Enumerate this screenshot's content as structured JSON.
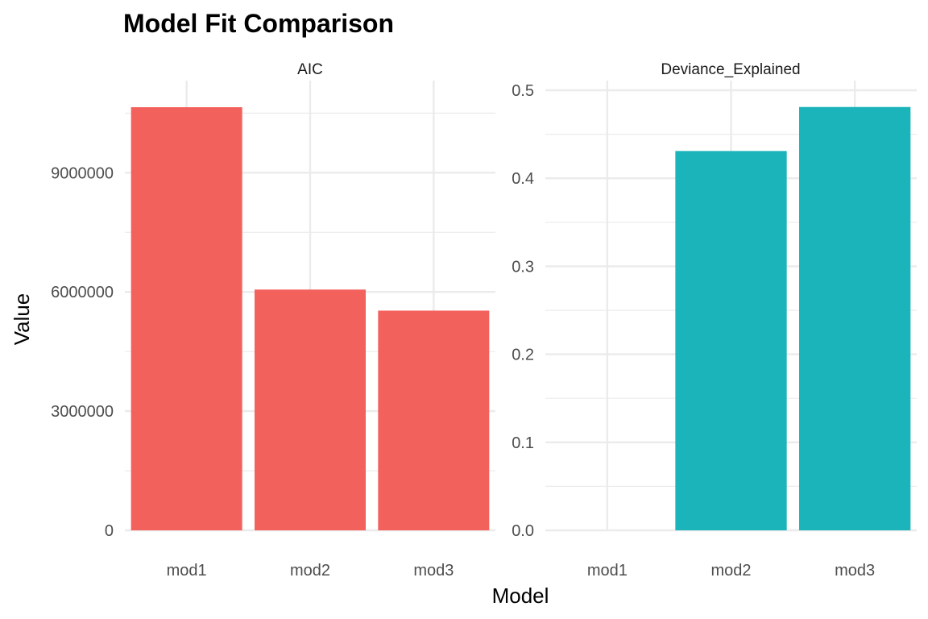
{
  "chart_data": {
    "type": "bar",
    "title": "Model Fit Comparison",
    "xlabel": "Model",
    "ylabel": "Value",
    "facets": [
      {
        "strip_label": "AIC",
        "categories": [
          "mod1",
          "mod2",
          "mod3"
        ],
        "values": [
          10650000,
          6060000,
          5530000
        ],
        "ylim": [
          0,
          10650000
        ],
        "yticks": [
          0,
          3000000,
          6000000,
          9000000
        ],
        "ytick_labels": [
          "0",
          "3000000",
          "6000000",
          "9000000"
        ],
        "color": "#F3615D"
      },
      {
        "strip_label": "Deviance_Explained",
        "categories": [
          "mod1",
          "mod2",
          "mod3"
        ],
        "values": [
          0.0,
          0.431,
          0.481
        ],
        "ylim": [
          0,
          0.5
        ],
        "yticks": [
          0.0,
          0.1,
          0.2,
          0.3,
          0.4,
          0.5
        ],
        "ytick_labels": [
          "0.0",
          "0.1",
          "0.2",
          "0.3",
          "0.4",
          "0.5"
        ],
        "color": "#1AB4BA"
      }
    ],
    "grid": true,
    "legend": "none"
  }
}
